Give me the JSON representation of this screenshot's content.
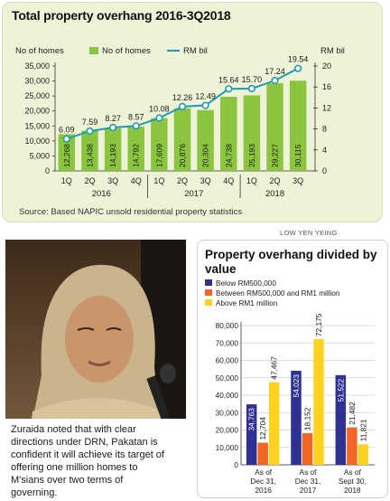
{
  "top": {
    "title": "Total property overhang 2016-3Q2018",
    "source": "Source: Based NAPIC unsold residential property statistics",
    "left_axis_label": "No of homes",
    "right_axis_label": "RM bil",
    "legend": [
      "No of homes",
      "RM bil"
    ]
  },
  "right_panel": {
    "title": "Property overhang divided by value"
  },
  "photo": {
    "credit": "LOW YEN YEING",
    "caption": "Zuraida noted that with clear directions under DRN, Pakatan is confident it will achieve its target of offering one million homes to M'sians over two terms of governing."
  },
  "colors": {
    "bar_green": "#8bc53f",
    "line_teal": "#1b9bb5",
    "blue": "#2e3192",
    "orange": "#f26522",
    "yellow": "#ffd21f",
    "panel_bg": "#eef2d6"
  },
  "chart_data": [
    {
      "type": "bar",
      "title": "Total property overhang 2016-3Q2018",
      "categories": [
        "1Q",
        "2Q",
        "3Q",
        "4Q",
        "1Q",
        "2Q",
        "3Q",
        "4Q",
        "1Q",
        "2Q",
        "3Q"
      ],
      "category_groups": [
        {
          "label": "2016",
          "count": 4
        },
        {
          "label": "2017",
          "count": 4
        },
        {
          "label": "2018",
          "count": 3
        }
      ],
      "series": [
        {
          "name": "No of homes",
          "type": "bar",
          "axis": "left",
          "values": [
            12268,
            13438,
            14193,
            14792,
            17609,
            20876,
            20304,
            24738,
            25193,
            29227,
            30115
          ]
        },
        {
          "name": "RM bil",
          "type": "line",
          "axis": "right",
          "values": [
            6.09,
            7.59,
            8.27,
            8.57,
            10.08,
            12.26,
            12.49,
            15.64,
            15.7,
            17.24,
            19.54
          ]
        }
      ],
      "y_left": {
        "label": "No of homes",
        "ylim": [
          0,
          35000
        ],
        "ticks": [
          "0",
          "5,000",
          "10,000",
          "15,000",
          "20,000",
          "25,000",
          "30,000",
          "35,000"
        ]
      },
      "y_right": {
        "label": "RM bil",
        "ylim": [
          0,
          20
        ],
        "ticks": [
          "0",
          "4",
          "8",
          "12",
          "16",
          "20"
        ]
      },
      "legend_position": "top"
    },
    {
      "type": "bar",
      "title": "Property overhang divided by value",
      "categories": [
        [
          "As of",
          "Dec 31,",
          "2016"
        ],
        [
          "As of",
          "Dec 31,",
          "2017"
        ],
        [
          "As of",
          "Sept 30,",
          "2018"
        ]
      ],
      "series": [
        {
          "name": "Below RM500,000",
          "values": [
            34763,
            54023,
            51522
          ]
        },
        {
          "name": "Between RM500,000 and RM1 million",
          "values": [
            12704,
            18152,
            21482
          ]
        },
        {
          "name": "Above RM1 million",
          "values": [
            47467,
            72175,
            11821
          ]
        }
      ],
      "ylim": [
        0,
        80000
      ],
      "ticks": [
        "0",
        "10,000",
        "20,000",
        "30,000",
        "40,000",
        "50,000",
        "60,000",
        "70,000",
        "80,000"
      ],
      "legend_position": "top"
    }
  ]
}
